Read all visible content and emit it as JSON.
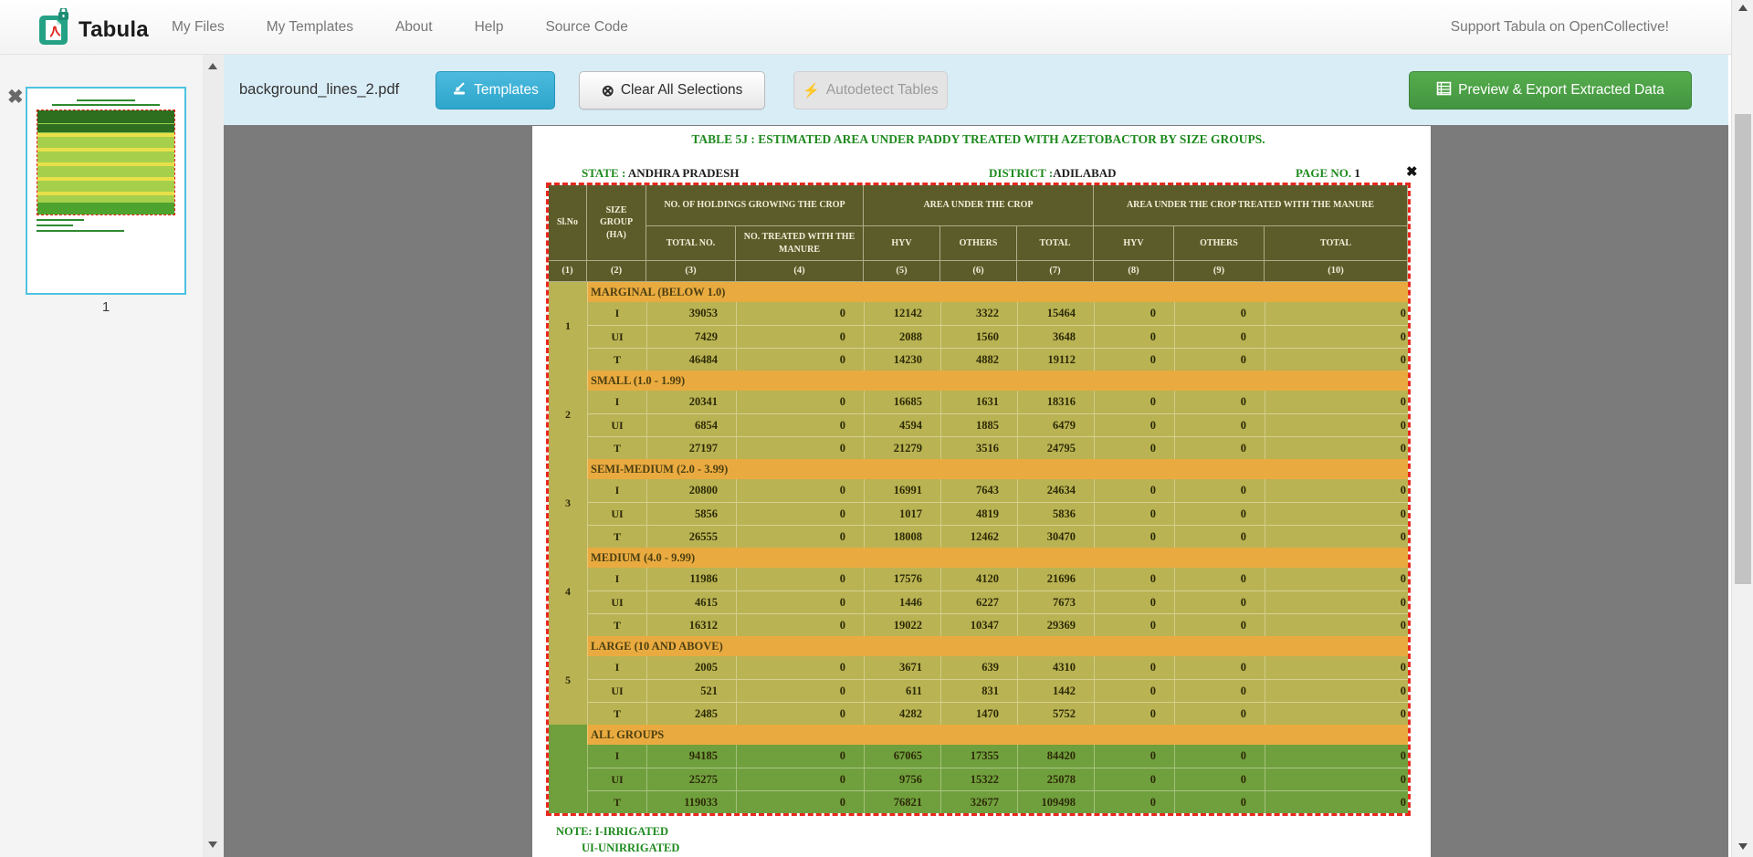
{
  "navbar": {
    "brand": "Tabula",
    "items": [
      "My Files",
      "My Templates",
      "About",
      "Help",
      "Source Code"
    ],
    "support_link": "Support Tabula on OpenCollective!"
  },
  "toolbar": {
    "filename": "background_lines_2.pdf",
    "templates_label": "Templates",
    "clear_selections_label": "Clear All Selections",
    "autodetect_label": "Autodetect Tables",
    "export_label": "Preview & Export Extracted Data"
  },
  "icons": {
    "clear_glyph": "⊗",
    "autodetect_glyph": "⚡",
    "sidebar_close_glyph": "✖",
    "selection_close_glyph": "✖"
  },
  "sidebar": {
    "page_number": "1"
  },
  "document": {
    "title": "TABLE 5J : ESTIMATED AREA UNDER PADDY TREATED WITH AZETOBACTOR BY SIZE GROUPS.",
    "state_label": "STATE :",
    "state_value": " ANDHRA PRADESH",
    "district_label": "DISTRICT :",
    "district_value": "ADILABAD",
    "page_label": "PAGE NO.",
    "page_value": " 1",
    "notes": [
      "NOTE: I-IRRIGATED",
      "UI-UNIRRIGATED"
    ],
    "table": {
      "header": {
        "col1": "Sl.No",
        "col2": "SIZE GROUP (HA)",
        "group_holdings": "NO. OF HOLDINGS GROWING THE CROP",
        "sub_holdings": [
          "TOTAL NO.",
          "NO. TREATED WITH THE MANURE"
        ],
        "group_area": "AREA UNDER THE CROP",
        "sub_area": [
          "HYV",
          "OTHERS",
          "TOTAL"
        ],
        "group_treated": "AREA UNDER THE CROP TREATED WITH THE MANURE",
        "sub_treated": [
          "HYV",
          "OTHERS",
          "TOTAL"
        ],
        "col_numbers": [
          "(1)",
          "(2)",
          "(3)",
          "(4)",
          "(5)",
          "(6)",
          "(7)",
          "(8)",
          "(9)",
          "(10)"
        ]
      },
      "groups": [
        {
          "sl": "1",
          "label": "MARGINAL (BELOW 1.0)",
          "green": false,
          "rows": [
            [
              "I",
              "39053",
              "0",
              "12142",
              "3322",
              "15464",
              "0",
              "0",
              "0"
            ],
            [
              "UI",
              "7429",
              "0",
              "2088",
              "1560",
              "3648",
              "0",
              "0",
              "0"
            ],
            [
              "T",
              "46484",
              "0",
              "14230",
              "4882",
              "19112",
              "0",
              "0",
              "0"
            ]
          ]
        },
        {
          "sl": "2",
          "label": "SMALL (1.0 - 1.99)",
          "green": false,
          "rows": [
            [
              "I",
              "20341",
              "0",
              "16685",
              "1631",
              "18316",
              "0",
              "0",
              "0"
            ],
            [
              "UI",
              "6854",
              "0",
              "4594",
              "1885",
              "6479",
              "0",
              "0",
              "0"
            ],
            [
              "T",
              "27197",
              "0",
              "21279",
              "3516",
              "24795",
              "0",
              "0",
              "0"
            ]
          ]
        },
        {
          "sl": "3",
          "label": "SEMI-MEDIUM (2.0 - 3.99)",
          "green": false,
          "rows": [
            [
              "I",
              "20800",
              "0",
              "16991",
              "7643",
              "24634",
              "0",
              "0",
              "0"
            ],
            [
              "UI",
              "5856",
              "0",
              "1017",
              "4819",
              "5836",
              "0",
              "0",
              "0"
            ],
            [
              "T",
              "26555",
              "0",
              "18008",
              "12462",
              "30470",
              "0",
              "0",
              "0"
            ]
          ]
        },
        {
          "sl": "4",
          "label": "MEDIUM (4.0 - 9.99)",
          "green": false,
          "rows": [
            [
              "I",
              "11986",
              "0",
              "17576",
              "4120",
              "21696",
              "0",
              "0",
              "0"
            ],
            [
              "UI",
              "4615",
              "0",
              "1446",
              "6227",
              "7673",
              "0",
              "0",
              "0"
            ],
            [
              "T",
              "16312",
              "0",
              "19022",
              "10347",
              "29369",
              "0",
              "0",
              "0"
            ]
          ]
        },
        {
          "sl": "5",
          "label": "LARGE (10 AND ABOVE)",
          "green": false,
          "rows": [
            [
              "I",
              "2005",
              "0",
              "3671",
              "639",
              "4310",
              "0",
              "0",
              "0"
            ],
            [
              "UI",
              "521",
              "0",
              "611",
              "831",
              "1442",
              "0",
              "0",
              "0"
            ],
            [
              "T",
              "2485",
              "0",
              "4282",
              "1470",
              "5752",
              "0",
              "0",
              "0"
            ]
          ]
        },
        {
          "sl": "",
          "label": "ALL GROUPS",
          "green": true,
          "rows": [
            [
              "I",
              "94185",
              "0",
              "67065",
              "17355",
              "84420",
              "0",
              "0",
              "0"
            ],
            [
              "UI",
              "25275",
              "0",
              "9756",
              "15322",
              "25078",
              "0",
              "0",
              "0"
            ],
            [
              "T",
              "119033",
              "0",
              "76821",
              "32677",
              "109498",
              "0",
              "0",
              "0"
            ]
          ]
        }
      ]
    }
  },
  "colors": {
    "pdf-green": "#1e8a1e",
    "sel-red": "#e8281e",
    "hdr-olive": "#5c5c2a",
    "row-khaki": "#b9b353",
    "group-orange": "#e9ab40",
    "green-row": "#70a03d",
    "accent-cyan": "#3cb1d4",
    "export-green": "#4a9d42",
    "toolbar-blue": "#d9edf7"
  }
}
